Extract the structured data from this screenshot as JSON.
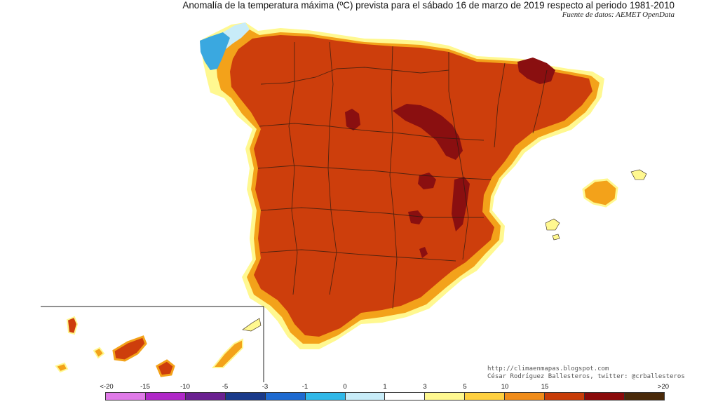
{
  "header": {
    "title": "Anomalía de la temperatura máxima (ºC) prevista para el sábado 16 de marzo de 2019 respecto al periodo 1981-2010",
    "source": "Fuente de datos: AEMET OpenData"
  },
  "credits": {
    "line1": "http://climaenmapas.blogspot.com",
    "line2": "César Rodríguez Ballesteros, twitter: @crballesteros"
  },
  "legend": {
    "ticks": [
      "<-20",
      "-15",
      "-10",
      "-5",
      "-3",
      "-1",
      "0",
      "1",
      "3",
      "5",
      "10",
      "15",
      ">20"
    ],
    "colors": [
      "#e07ae8",
      "#b028c8",
      "#6a2090",
      "#1a3a8a",
      "#1e6ad0",
      "#30b8e8",
      "#c8ecf8",
      "#ffffff",
      "#fff890",
      "#ffd040",
      "#f08c1a",
      "#c83c08",
      "#8a0a0a",
      "#4a2a0a"
    ]
  },
  "map": {
    "colors": {
      "sea": "#ffffff",
      "anomaly_3_5": "#fff890",
      "anomaly_5_10": "#f3a21a",
      "anomaly_10_15": "#cd3e0c",
      "anomaly_15_20": "#8a0f10",
      "anomaly_neg": "#3aa8e0",
      "borders": "#2a1a10"
    }
  }
}
